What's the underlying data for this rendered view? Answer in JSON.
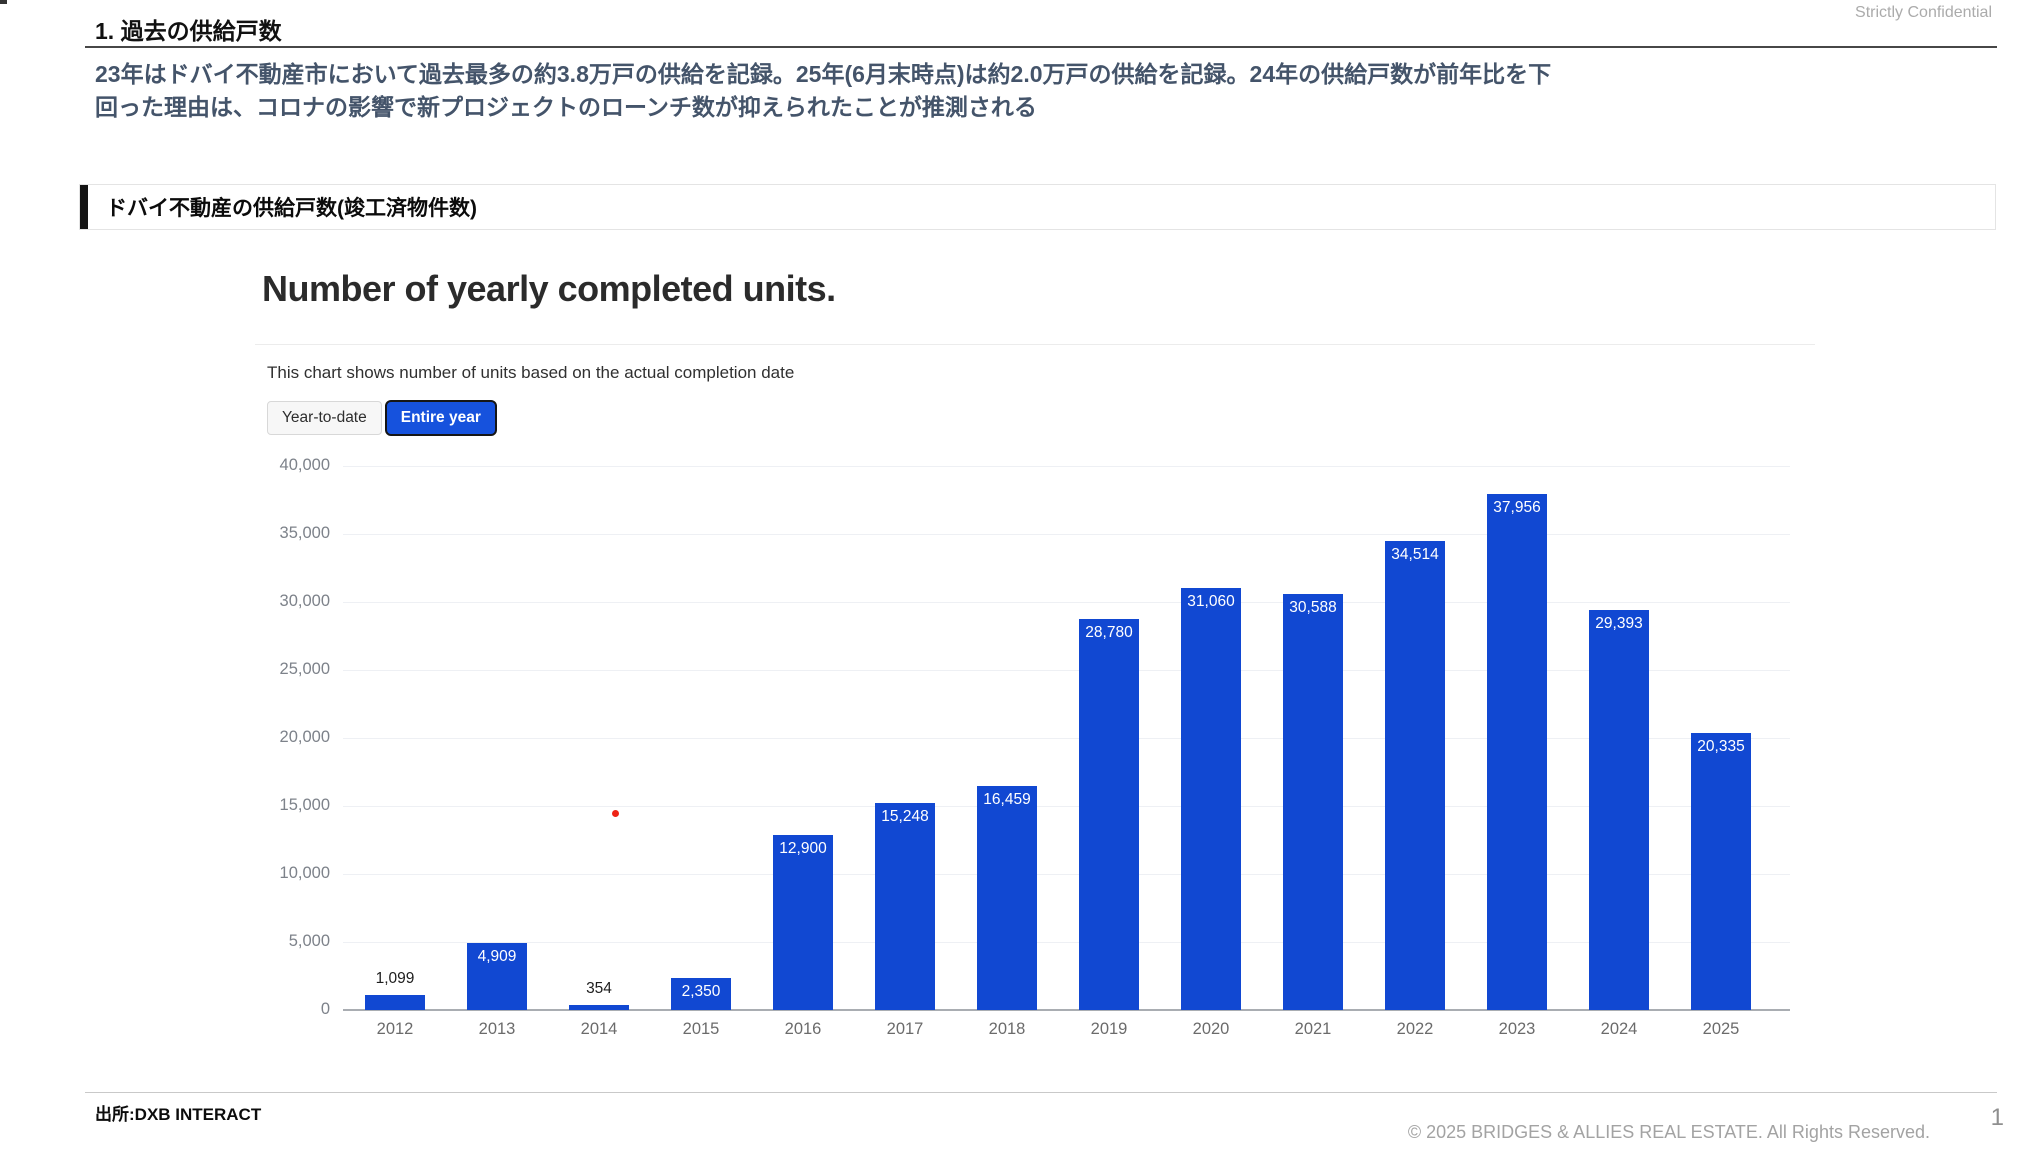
{
  "page": {
    "confidential": "Strictly Confidential",
    "title": "1. 過去の供給戸数",
    "summary_lines": [
      "23年はドバイ不動産市において過去最多の約3.8万戸の供給を記録。25年(6月末時点)は約2.0万戸の供給を記録。24年の供給戸数が前年比を下",
      "回った理由は、コロナの影響で新プロジェクトのローンチ数が抑えられたことが推測される"
    ],
    "section_header": "ドバイ不動産の供給戸数(竣工済物件数)",
    "source": "出所:DXB INTERACT",
    "copyright": "© 2025 BRIDGES & ALLIES REAL ESTATE. All Rights Reserved.",
    "page_number": "1"
  },
  "chart_widget": {
    "title": "Number of yearly completed units.",
    "subtitle": "This chart shows number of units based on the actual completion date",
    "toggle": {
      "options": [
        "Year-to-date",
        "Entire year"
      ],
      "selected": "Entire year"
    }
  },
  "chart_data": {
    "type": "bar",
    "title": "Number of yearly completed units.",
    "categories": [
      "2012",
      "2013",
      "2014",
      "2015",
      "2016",
      "2017",
      "2018",
      "2019",
      "2020",
      "2021",
      "2022",
      "2023",
      "2024",
      "2025"
    ],
    "values": [
      1099,
      4909,
      354,
      2350,
      12900,
      15248,
      16459,
      28780,
      31060,
      30588,
      34514,
      37956,
      29393,
      20335
    ],
    "xlabel": "",
    "ylabel": "",
    "ylim": [
      0,
      40000
    ],
    "ytick_interval": 5000,
    "grid": true,
    "legend": "none",
    "data_labels": true,
    "label_inside_threshold": 2000
  },
  "colors": {
    "bar": "#1148d2",
    "toggle_selected_bg": "#1652dd",
    "summary_text": "#44546a",
    "red_dot": "#ee2315"
  }
}
